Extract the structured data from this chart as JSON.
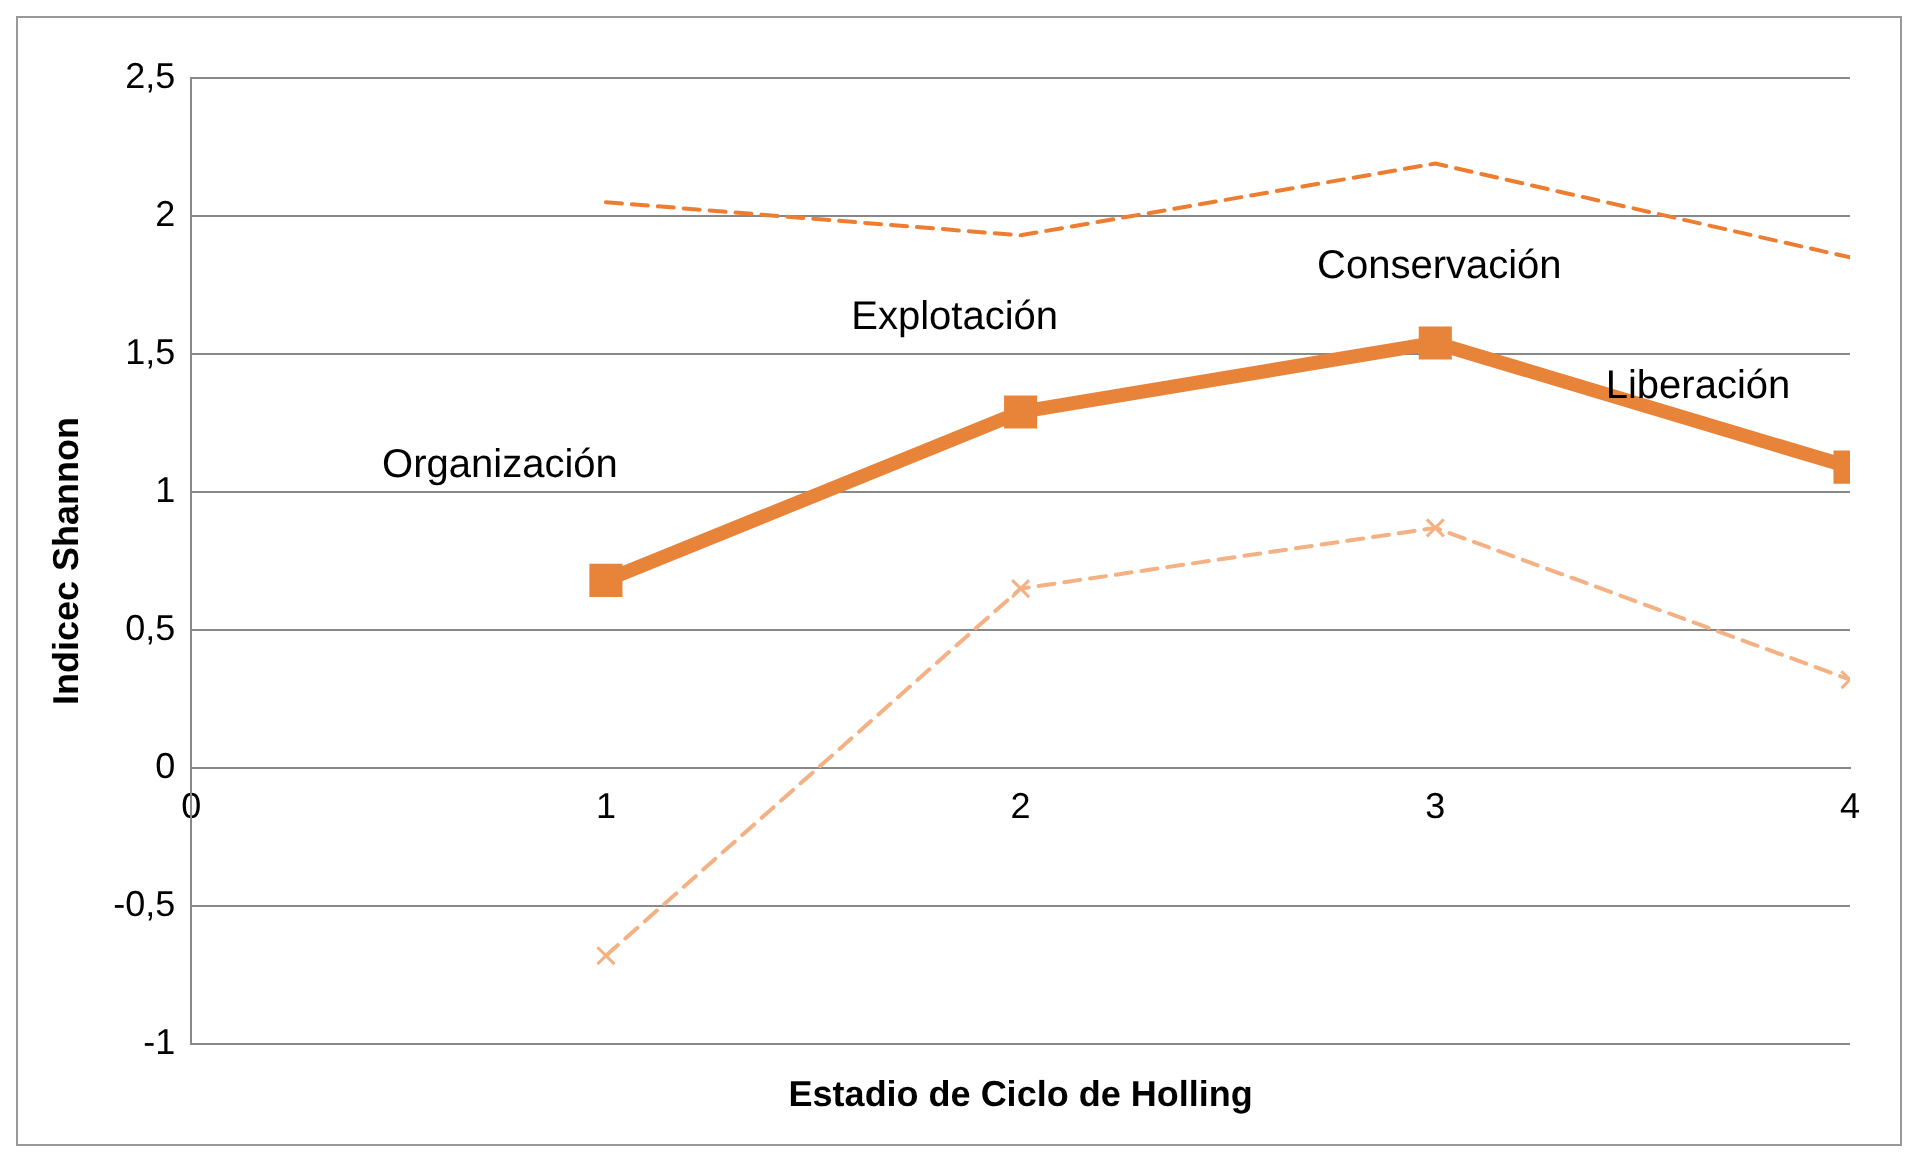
{
  "chart_data": {
    "type": "line",
    "xlabel": "Estadio de Ciclo de Holling",
    "ylabel": "Indicec Shannon",
    "x": [
      1,
      2,
      3,
      4
    ],
    "series": [
      {
        "color": "#ed7d31",
        "values": [
          2.05,
          1.93,
          2.19,
          1.85
        ],
        "line_style": "dashed",
        "marker": "none"
      },
      {
        "color": "#e8843a",
        "values": [
          0.68,
          1.29,
          1.54,
          1.09
        ],
        "line_style": "solid",
        "marker": "square"
      },
      {
        "color": "#f4b183",
        "values": [
          -0.68,
          0.65,
          0.87,
          0.32
        ],
        "line_style": "dashed",
        "marker": "cross"
      }
    ],
    "xlim": [
      0,
      4
    ],
    "xticks": [
      0,
      1,
      2,
      3,
      4
    ],
    "ylim": [
      -1,
      2.5
    ],
    "yticks": [
      -1,
      {
        "value": -0.5,
        "label": "-0,5"
      },
      0,
      {
        "value": 0.5,
        "label": "0,5"
      },
      1,
      {
        "value": 1.5,
        "label": "1,5"
      },
      2,
      {
        "value": 2.5,
        "label": "2,5"
      }
    ],
    "grid": "y",
    "legend": false,
    "annotations": [
      {
        "text": "Organización",
        "x": 1,
        "y": 0.68
      },
      {
        "text": "Explotación",
        "x": 2,
        "y": 1.29
      },
      {
        "text": "Conservación",
        "x": 3,
        "y": 1.54
      },
      {
        "text": "Liberación",
        "x": 4,
        "y": 1.09
      }
    ]
  }
}
